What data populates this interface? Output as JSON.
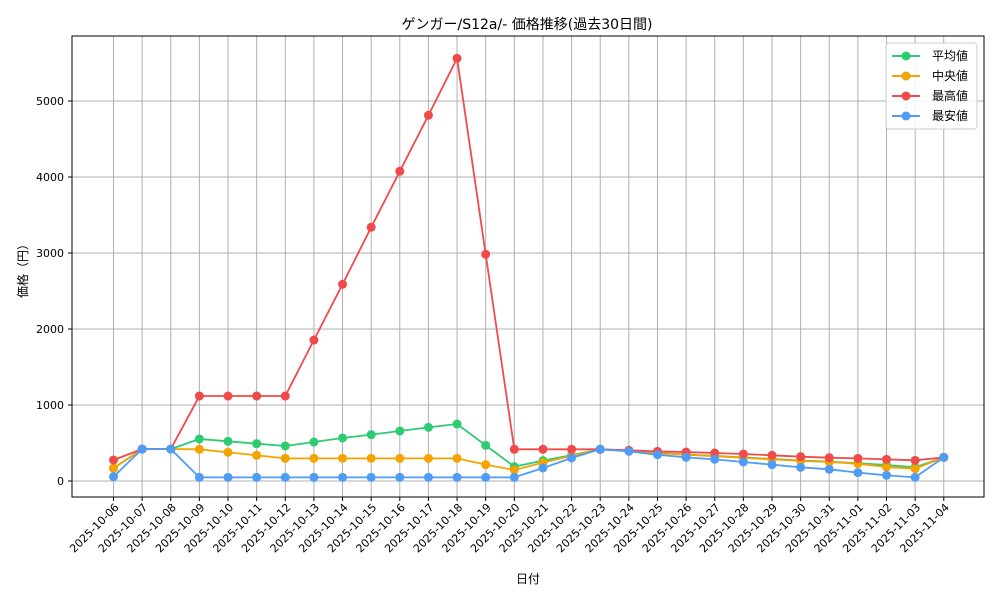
{
  "chart_data": {
    "type": "line",
    "title": "ゲンガー/S12a/- 価格推移(過去30日間)",
    "xlabel": "日付",
    "ylabel": "価格（円）",
    "ylim": [
      -220,
      5800
    ],
    "yticks": [
      0,
      1000,
      2000,
      3000,
      4000,
      5000
    ],
    "grid": true,
    "legend_position": "upper right",
    "categories": [
      "2025-10-06",
      "2025-10-07",
      "2025-10-08",
      "2025-10-09",
      "2025-10-10",
      "2025-10-11",
      "2025-10-12",
      "2025-10-13",
      "2025-10-14",
      "2025-10-15",
      "2025-10-16",
      "2025-10-17",
      "2025-10-18",
      "2025-10-19",
      "2025-10-20",
      "2025-10-21",
      "2025-10-22",
      "2025-10-23",
      "2025-10-24",
      "2025-10-25",
      "2025-10-26",
      "2025-10-27",
      "2025-10-28",
      "2025-10-29",
      "2025-10-30",
      "2025-10-31",
      "2025-11-01",
      "2025-11-02",
      "2025-11-03",
      "2025-11-04"
    ],
    "series": [
      {
        "name": "平均値",
        "color": "#2ecc71",
        "values": [
          167,
          420,
          420,
          553,
          522,
          491,
          461,
          513,
          566,
          610,
          658,
          706,
          750,
          469,
          189,
          268,
          340,
          417,
          398,
          370,
          348,
          330,
          310,
          290,
          270,
          255,
          235,
          210,
          180,
          311
        ]
      },
      {
        "name": "中央値",
        "color": "#f5a300",
        "values": [
          167,
          420,
          420,
          417,
          377,
          338,
          298,
          298,
          298,
          298,
          298,
          298,
          298,
          215,
          145,
          241,
          330,
          417,
          396,
          368,
          346,
          326,
          305,
          285,
          265,
          250,
          228,
          184,
          162,
          311
        ]
      },
      {
        "name": "最高値",
        "color": "#f04a4a",
        "values": [
          276,
          420,
          420,
          1118,
          1118,
          1118,
          1118,
          1855,
          2588,
          3338,
          4075,
          4812,
          5562,
          2983,
          417,
          417,
          417,
          417,
          404,
          390,
          381,
          368,
          355,
          338,
          320,
          307,
          298,
          285,
          272,
          311
        ]
      },
      {
        "name": "最安値",
        "color": "#4f9cf5",
        "values": [
          57,
          420,
          420,
          48,
          48,
          48,
          48,
          48,
          48,
          48,
          48,
          48,
          48,
          48,
          48,
          171,
          303,
          417,
          390,
          346,
          311,
          285,
          250,
          215,
          180,
          154,
          110,
          75,
          48,
          311
        ]
      }
    ]
  }
}
